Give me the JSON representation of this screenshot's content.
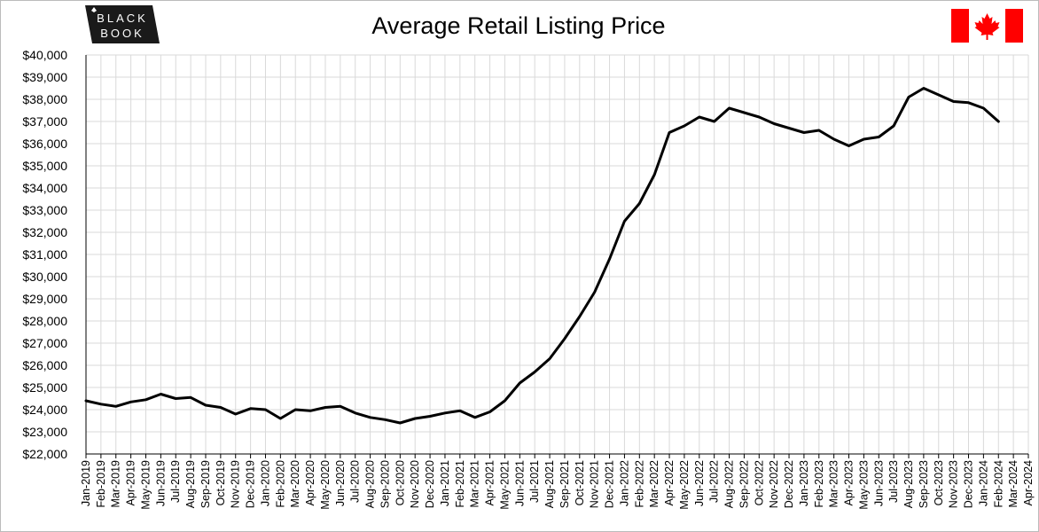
{
  "logo_text": [
    "BLACK",
    "BOOK"
  ],
  "chart_data": {
    "type": "line",
    "title": "Average Retail Listing Price",
    "categories": [
      "Jan-2019",
      "Feb-2019",
      "Mar-2019",
      "Apr-2019",
      "May-2019",
      "Jun-2019",
      "Jul-2019",
      "Aug-2019",
      "Sep-2019",
      "Oct-2019",
      "Nov-2019",
      "Dec-2019",
      "Jan-2020",
      "Feb-2020",
      "Mar-2020",
      "Apr-2020",
      "May-2020",
      "Jun-2020",
      "Jul-2020",
      "Aug-2020",
      "Sep-2020",
      "Oct-2020",
      "Nov-2020",
      "Dec-2020",
      "Jan-2021",
      "Feb-2021",
      "Mar-2021",
      "Apr-2021",
      "May-2021",
      "Jun-2021",
      "Jul-2021",
      "Aug-2021",
      "Sep-2021",
      "Oct-2021",
      "Nov-2021",
      "Dec-2021",
      "Jan-2022",
      "Feb-2022",
      "Mar-2022",
      "Apr-2022",
      "May-2022",
      "Jun-2022",
      "Jul-2022",
      "Aug-2022",
      "Sep-2022",
      "Oct-2022",
      "Nov-2022",
      "Dec-2022",
      "Jan-2023",
      "Feb-2023",
      "Mar-2023",
      "Apr-2023",
      "May-2023",
      "Jun-2023",
      "Jul-2023",
      "Aug-2023",
      "Sep-2023",
      "Oct-2023",
      "Nov-2023",
      "Dec-2023",
      "Jan-2024",
      "Feb-2024",
      "Mar-2024",
      "Apr-2024"
    ],
    "series": [
      {
        "name": "Average Retail Listing Price",
        "color": "#000000",
        "values": [
          24400,
          24250,
          24150,
          24350,
          24450,
          24700,
          24500,
          24550,
          24200,
          24100,
          23800,
          24050,
          24000,
          23600,
          24000,
          23950,
          24100,
          24150,
          23850,
          23650,
          23550,
          23400,
          23600,
          23700,
          23850,
          23950,
          23650,
          23900,
          24400,
          25200,
          25700,
          26300,
          27200,
          28200,
          29300,
          30800,
          32500,
          33300,
          34600,
          36500,
          36800,
          37200,
          37000,
          37600,
          37400,
          37200,
          36900,
          36700,
          36500,
          36600,
          36200,
          35900,
          36200,
          36300,
          36800,
          38100,
          38500,
          38200,
          37900,
          37850,
          37600,
          37000,
          null,
          null
        ]
      }
    ],
    "ylim": [
      22000,
      40000
    ],
    "yticks": [
      {
        "value": 22000,
        "label": "$22,000"
      },
      {
        "value": 23000,
        "label": "$23,000"
      },
      {
        "value": 24000,
        "label": "$24,000"
      },
      {
        "value": 25000,
        "label": "$25,000"
      },
      {
        "value": 26000,
        "label": "$26,000"
      },
      {
        "value": 27000,
        "label": "$27,000"
      },
      {
        "value": 28000,
        "label": "$28,000"
      },
      {
        "value": 29000,
        "label": "$29,000"
      },
      {
        "value": 30000,
        "label": "$30,000"
      },
      {
        "value": 31000,
        "label": "$31,000"
      },
      {
        "value": 32000,
        "label": "$32,000"
      },
      {
        "value": 33000,
        "label": "$33,000"
      },
      {
        "value": 34000,
        "label": "$34,000"
      },
      {
        "value": 35000,
        "label": "$35,000"
      },
      {
        "value": 36000,
        "label": "$36,000"
      },
      {
        "value": 37000,
        "label": "$37,000"
      },
      {
        "value": 38000,
        "label": "$38,000"
      },
      {
        "value": 39000,
        "label": "$39,000"
      },
      {
        "value": 40000,
        "label": "$40,000"
      }
    ],
    "grid": true
  }
}
